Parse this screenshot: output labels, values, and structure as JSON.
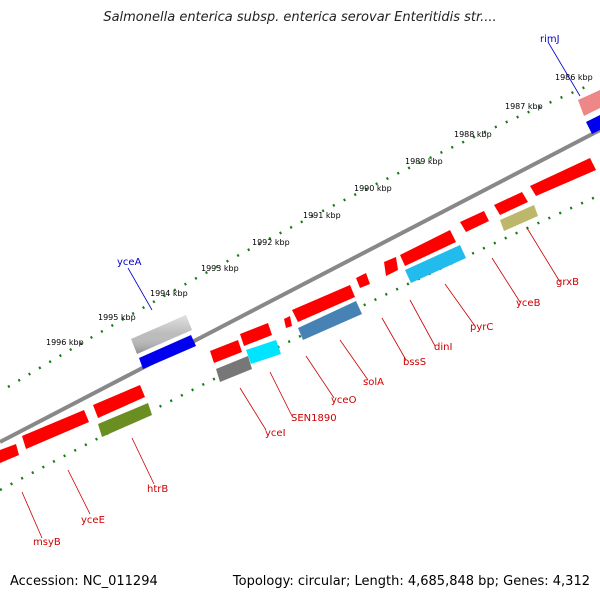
{
  "title": "Salmonella enterica subsp. enterica serovar Enteritidis str....",
  "accession": "Accession: NC_011294",
  "summary": "Topology: circular; Length: 4,685,848 bp; Genes: 4,312",
  "scale_labels": [
    "1986 kbp",
    "1987 kbp",
    "1988 kbp",
    "1989 kbp",
    "1990 kbp",
    "1991 kbp",
    "1992 kbp",
    "1993 kbp",
    "1994 kbp",
    "1995 kbp",
    "1996 kbp"
  ],
  "genes": [
    {
      "name": "rimJ",
      "color": "#0000cc"
    },
    {
      "name": "yceA",
      "color": "#0000cc"
    },
    {
      "name": "grxB",
      "color": "#cc0000"
    },
    {
      "name": "yceB",
      "color": "#cc0000"
    },
    {
      "name": "pyrC",
      "color": "#cc0000"
    },
    {
      "name": "dinI",
      "color": "#cc0000"
    },
    {
      "name": "bssS",
      "color": "#cc0000"
    },
    {
      "name": "solA",
      "color": "#cc0000"
    },
    {
      "name": "yceO",
      "color": "#cc0000"
    },
    {
      "name": "SEN1890",
      "color": "#cc0000"
    },
    {
      "name": "yceI",
      "color": "#cc0000"
    },
    {
      "name": "htrB",
      "color": "#cc0000"
    },
    {
      "name": "yceE",
      "color": "#cc0000"
    },
    {
      "name": "msyB",
      "color": "#cc0000"
    }
  ],
  "colors": {
    "backbone": "#888888",
    "tick": "#1a7a1a",
    "feature_red": "#ff0000",
    "feature_blue": "#0000ee",
    "feature_cyan": "#00e5ff",
    "feature_lightblue": "#22bbee",
    "feature_steel": "#4682b4",
    "feature_olive": "#6b8e23",
    "feature_khaki": "#bdb76b",
    "feature_gray": "#777777",
    "feature_lightgray": "#bbbbbb",
    "feature_pink": "#ee8888"
  }
}
